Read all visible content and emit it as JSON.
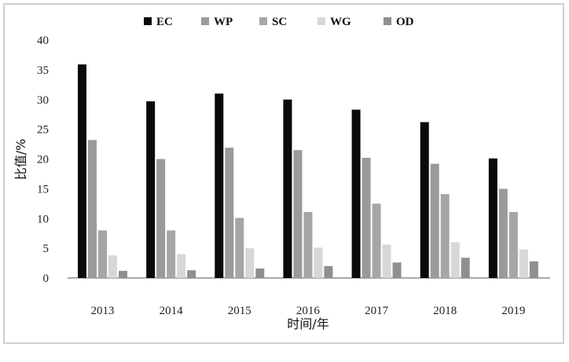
{
  "chart_data": {
    "type": "bar",
    "title": "",
    "xlabel": "时间/年",
    "ylabel": "比值/%",
    "ylim": [
      0,
      40
    ],
    "yticks": [
      0,
      5,
      10,
      15,
      20,
      25,
      30,
      35,
      40
    ],
    "grid": false,
    "legend_position": "top",
    "categories": [
      "2013",
      "2014",
      "2015",
      "2016",
      "2017",
      "2018",
      "2019"
    ],
    "series": [
      {
        "name": "EC",
        "color": "#0a0a0a",
        "values": [
          35.9,
          29.7,
          31.0,
          30.0,
          28.3,
          26.2,
          20.1
        ]
      },
      {
        "name": "WP",
        "color": "#9a9a9a",
        "values": [
          23.2,
          20.0,
          21.9,
          21.5,
          20.2,
          19.2,
          15.0
        ]
      },
      {
        "name": "SC",
        "color": "#a6a6a6",
        "values": [
          8.0,
          8.0,
          10.1,
          11.1,
          12.5,
          14.1,
          11.1
        ]
      },
      {
        "name": "WG",
        "color": "#d7d7d7",
        "values": [
          3.8,
          4.0,
          5.0,
          5.1,
          5.6,
          6.0,
          4.8
        ]
      },
      {
        "name": "OD",
        "color": "#8f8f8f",
        "values": [
          1.2,
          1.3,
          1.6,
          2.0,
          2.6,
          3.4,
          2.8
        ]
      }
    ]
  }
}
